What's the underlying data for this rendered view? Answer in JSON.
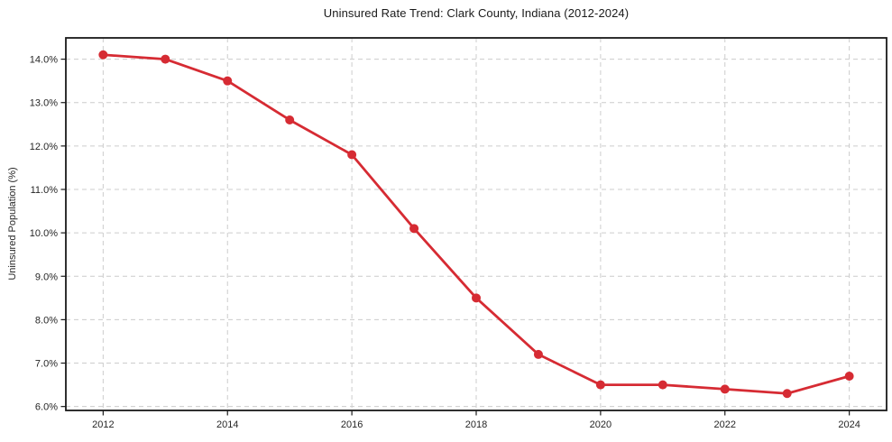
{
  "chart_data": {
    "type": "line",
    "title": "Uninsured Rate Trend: Clark County, Indiana (2012-2024)",
    "xlabel": "",
    "ylabel": "Uninsured Population (%)",
    "series": [
      {
        "name": "Uninsured rate",
        "x": [
          2012,
          2013,
          2014,
          2015,
          2016,
          2017,
          2018,
          2019,
          2020,
          2021,
          2022,
          2023,
          2024
        ],
        "values": [
          14.1,
          14.0,
          13.5,
          12.6,
          11.8,
          10.1,
          8.5,
          7.2,
          6.5,
          6.5,
          6.4,
          6.3,
          6.7
        ]
      }
    ],
    "xlim": [
      2011.4,
      2024.6
    ],
    "ylim": [
      5.91,
      14.49
    ],
    "x_ticks": [
      {
        "value": 2012,
        "label": "2012"
      },
      {
        "value": 2014,
        "label": "2014"
      },
      {
        "value": 2016,
        "label": "2016"
      },
      {
        "value": 2018,
        "label": "2018"
      },
      {
        "value": 2020,
        "label": "2020"
      },
      {
        "value": 2022,
        "label": "2022"
      },
      {
        "value": 2024,
        "label": "2024"
      }
    ],
    "y_ticks": [
      {
        "value": 14.0,
        "label": "14.0%"
      },
      {
        "value": 13.0,
        "label": "13.0%"
      },
      {
        "value": 12.0,
        "label": "12.0%"
      },
      {
        "value": 11.0,
        "label": "11.0%"
      },
      {
        "value": 10.0,
        "label": "10.0%"
      },
      {
        "value": 9.0,
        "label": "9.0%"
      },
      {
        "value": 8.0,
        "label": "8.0%"
      },
      {
        "value": 7.0,
        "label": "7.0%"
      },
      {
        "value": 6.0,
        "label": "6.0%"
      }
    ],
    "grid": "dashed",
    "legend": "none",
    "marker": "circle",
    "line_color": "#d62b33",
    "grid_color": "#cccccc",
    "axis_color": "#1a1a1a",
    "text_color": "#262626",
    "background_color": "#ffffff"
  }
}
